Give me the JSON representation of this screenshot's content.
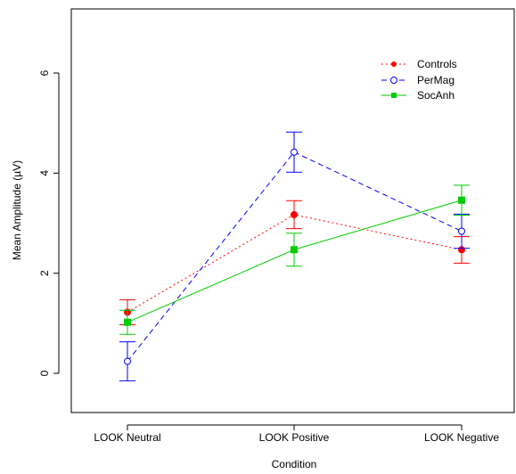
{
  "chart_data": {
    "type": "line",
    "title": "",
    "xlabel": "Condition",
    "ylabel": "Mean Amplitude (µV)",
    "categories": [
      "LOOK Neutral",
      "LOOK Positive",
      "LOOK Negative"
    ],
    "yticks": [
      0,
      2,
      4,
      6
    ],
    "ylim": [
      -0.8,
      7.2
    ],
    "grid": false,
    "legend_position": "top-right",
    "series": [
      {
        "name": "Controls",
        "color": "#ff0000",
        "line_style": "dotted",
        "marker": "filled-circle",
        "values": [
          1.22,
          3.17,
          2.47
        ],
        "err_low": [
          0.97,
          2.89,
          2.2
        ],
        "err_high": [
          1.47,
          3.45,
          2.73
        ]
      },
      {
        "name": "PerMag",
        "color": "#0000ff",
        "line_style": "dashed",
        "marker": "open-circle",
        "values": [
          0.24,
          4.42,
          2.84
        ],
        "err_low": [
          -0.15,
          4.02,
          2.5
        ],
        "err_high": [
          0.63,
          4.82,
          3.18
        ]
      },
      {
        "name": "SocAnh",
        "color": "#00cc00",
        "line_style": "solid",
        "marker": "filled-square",
        "values": [
          1.02,
          2.47,
          3.46
        ],
        "err_low": [
          0.78,
          2.14,
          3.16
        ],
        "err_high": [
          1.26,
          2.8,
          3.76
        ]
      }
    ]
  }
}
